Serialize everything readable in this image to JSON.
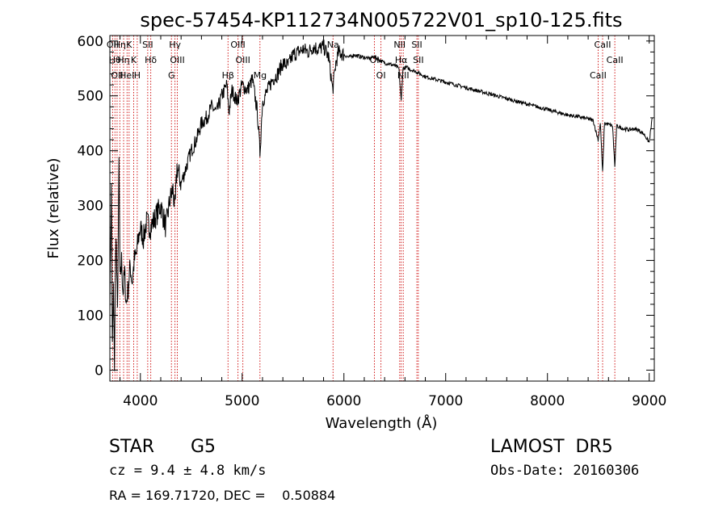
{
  "chart_data": {
    "type": "line",
    "title": "spec-57454-KP112734N005722V01_sp10-125.fits",
    "xlabel": "Wavelength (Å)",
    "ylabel": "Flux (relative)",
    "xlim": [
      3700,
      9050
    ],
    "ylim": [
      -20,
      610
    ],
    "x_ticks": [
      4000,
      5000,
      6000,
      7000,
      8000,
      9000
    ],
    "y_ticks": [
      0,
      100,
      200,
      300,
      400,
      500,
      600
    ],
    "grid": false,
    "series": [
      {
        "points": [
          [
            3700,
            120
          ],
          [
            3715,
            330
          ],
          [
            3725,
            40
          ],
          [
            3735,
            150
          ],
          [
            3745,
            10
          ],
          [
            3760,
            260
          ],
          [
            3775,
            100
          ],
          [
            3790,
            380
          ],
          [
            3800,
            160
          ],
          [
            3815,
            200
          ],
          [
            3830,
            140
          ],
          [
            3845,
            180
          ],
          [
            3860,
            120
          ],
          [
            3880,
            150
          ],
          [
            3900,
            190
          ],
          [
            3920,
            160
          ],
          [
            3940,
            200
          ],
          [
            3960,
            210
          ],
          [
            3980,
            240
          ],
          [
            4000,
            260
          ],
          [
            4030,
            240
          ],
          [
            4060,
            270
          ],
          [
            4100,
            260
          ],
          [
            4150,
            280
          ],
          [
            4200,
            300
          ],
          [
            4250,
            260
          ],
          [
            4290,
            310
          ],
          [
            4320,
            330
          ],
          [
            4340,
            290
          ],
          [
            4360,
            370
          ],
          [
            4400,
            340
          ],
          [
            4450,
            370
          ],
          [
            4500,
            400
          ],
          [
            4550,
            420
          ],
          [
            4600,
            450
          ],
          [
            4650,
            460
          ],
          [
            4700,
            480
          ],
          [
            4750,
            470
          ],
          [
            4800,
            500
          ],
          [
            4850,
            520
          ],
          [
            4870,
            470
          ],
          [
            4900,
            510
          ],
          [
            4950,
            490
          ],
          [
            5000,
            520
          ],
          [
            5050,
            510
          ],
          [
            5100,
            530
          ],
          [
            5150,
            470
          ],
          [
            5175,
            395
          ],
          [
            5200,
            490
          ],
          [
            5250,
            510
          ],
          [
            5300,
            530
          ],
          [
            5350,
            540
          ],
          [
            5400,
            560
          ],
          [
            5450,
            555
          ],
          [
            5500,
            575
          ],
          [
            5550,
            580
          ],
          [
            5600,
            585
          ],
          [
            5650,
            580
          ],
          [
            5700,
            590
          ],
          [
            5750,
            585
          ],
          [
            5800,
            590
          ],
          [
            5850,
            570
          ],
          [
            5890,
            510
          ],
          [
            5920,
            560
          ],
          [
            5950,
            580
          ],
          [
            6000,
            575
          ],
          [
            6050,
            570
          ],
          [
            6100,
            575
          ],
          [
            6150,
            572
          ],
          [
            6200,
            570
          ],
          [
            6250,
            568
          ],
          [
            6300,
            572
          ],
          [
            6350,
            565
          ],
          [
            6400,
            560
          ],
          [
            6450,
            558
          ],
          [
            6500,
            555
          ],
          [
            6540,
            550
          ],
          [
            6563,
            490
          ],
          [
            6580,
            550
          ],
          [
            6620,
            552
          ],
          [
            6650,
            548
          ],
          [
            6700,
            545
          ],
          [
            6750,
            540
          ],
          [
            6800,
            535
          ],
          [
            6900,
            530
          ],
          [
            7000,
            525
          ],
          [
            7100,
            520
          ],
          [
            7200,
            515
          ],
          [
            7300,
            510
          ],
          [
            7400,
            505
          ],
          [
            7500,
            500
          ],
          [
            7600,
            495
          ],
          [
            7700,
            490
          ],
          [
            7800,
            485
          ],
          [
            7900,
            480
          ],
          [
            8000,
            475
          ],
          [
            8100,
            470
          ],
          [
            8200,
            465
          ],
          [
            8300,
            462
          ],
          [
            8400,
            458
          ],
          [
            8450,
            455
          ],
          [
            8498,
            420
          ],
          [
            8520,
            450
          ],
          [
            8542,
            360
          ],
          [
            8560,
            450
          ],
          [
            8600,
            448
          ],
          [
            8640,
            445
          ],
          [
            8662,
            370
          ],
          [
            8680,
            445
          ],
          [
            8750,
            440
          ],
          [
            8800,
            438
          ],
          [
            8850,
            440
          ],
          [
            8900,
            437
          ],
          [
            8950,
            430
          ],
          [
            9000,
            415
          ],
          [
            9030,
            460
          ]
        ]
      }
    ],
    "lines": [
      {
        "x": 3727,
        "label": "OII"
      },
      {
        "x": 3750,
        "label": "Hθ"
      },
      {
        "x": 3771,
        "label": "OII"
      },
      {
        "x": 3798,
        "label": "Hη"
      },
      {
        "x": 3835,
        "label": "Hη"
      },
      {
        "x": 3869,
        "label": "HeI"
      },
      {
        "x": 3889,
        "label": "K"
      },
      {
        "x": 3934,
        "label": "K"
      },
      {
        "x": 3969,
        "label": "H"
      },
      {
        "x": 4072,
        "label": "SII"
      },
      {
        "x": 4102,
        "label": "Hδ"
      },
      {
        "x": 4305,
        "label": "G"
      },
      {
        "x": 4340,
        "label": "Hγ"
      },
      {
        "x": 4363,
        "label": "OIII"
      },
      {
        "x": 4861,
        "label": "Hβ"
      },
      {
        "x": 4959,
        "label": "OIII"
      },
      {
        "x": 5007,
        "label": "OIII"
      },
      {
        "x": 5175,
        "label": "Mg"
      },
      {
        "x": 5893,
        "label": "Na"
      },
      {
        "x": 6300,
        "label": "OI"
      },
      {
        "x": 6364,
        "label": "OI"
      },
      {
        "x": 6548,
        "label": "NII"
      },
      {
        "x": 6563,
        "label": "Hα"
      },
      {
        "x": 6583,
        "label": "NII"
      },
      {
        "x": 6717,
        "label": "SII"
      },
      {
        "x": 6731,
        "label": "SII"
      },
      {
        "x": 8498,
        "label": "CaII"
      },
      {
        "x": 8542,
        "label": "CaII"
      },
      {
        "x": 8662,
        "label": "CaII"
      }
    ]
  },
  "info": {
    "class_label": "STAR",
    "subclass": "G5",
    "survey": "LAMOST  DR5",
    "cz": "cz = 9.4 ± 4.8 km/s",
    "obs_date": "Obs-Date: 20160306",
    "coords": "RA = 169.71720, DEC =    0.50884"
  }
}
